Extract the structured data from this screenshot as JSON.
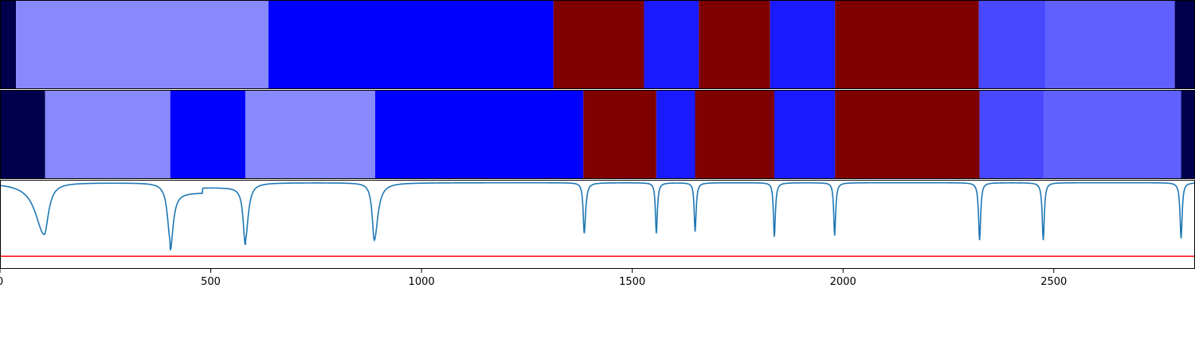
{
  "chart_data": {
    "type": "area",
    "title": "",
    "xlabel": "",
    "ylabel": "",
    "xlim": [
      0,
      2835
    ],
    "grid": false,
    "legend": "none",
    "xticks": [
      "0",
      "500",
      "1000",
      "1500",
      "2000",
      "2500"
    ],
    "xtick_values": [
      0,
      500,
      1000,
      1500,
      2000,
      2500
    ],
    "segment_tracks": [
      {
        "segments": [
          {
            "start": 0,
            "end": 38,
            "color": "#00004c"
          },
          {
            "start": 38,
            "end": 637,
            "color": "#8888ff"
          },
          {
            "start": 637,
            "end": 1313,
            "color": "#0000ff"
          },
          {
            "start": 1313,
            "end": 1528,
            "color": "#7f0000"
          },
          {
            "start": 1528,
            "end": 1658,
            "color": "#1a1aff"
          },
          {
            "start": 1658,
            "end": 1827,
            "color": "#7f0000"
          },
          {
            "start": 1827,
            "end": 1981,
            "color": "#1a1aff"
          },
          {
            "start": 1981,
            "end": 2322,
            "color": "#7f0000"
          },
          {
            "start": 2322,
            "end": 2481,
            "color": "#4848ff"
          },
          {
            "start": 2481,
            "end": 2787,
            "color": "#6060ff"
          },
          {
            "start": 2787,
            "end": 2835,
            "color": "#00004c"
          }
        ]
      },
      {
        "segments": [
          {
            "start": 0,
            "end": 107,
            "color": "#00004c"
          },
          {
            "start": 107,
            "end": 404,
            "color": "#8888ff"
          },
          {
            "start": 404,
            "end": 582,
            "color": "#0000ff"
          },
          {
            "start": 582,
            "end": 890,
            "color": "#8888ff"
          },
          {
            "start": 890,
            "end": 1384,
            "color": "#0000ff"
          },
          {
            "start": 1384,
            "end": 1557,
            "color": "#7f0000"
          },
          {
            "start": 1557,
            "end": 1649,
            "color": "#1a1aff"
          },
          {
            "start": 1649,
            "end": 1837,
            "color": "#7f0000"
          },
          {
            "start": 1837,
            "end": 1981,
            "color": "#1a1aff"
          },
          {
            "start": 1981,
            "end": 2324,
            "color": "#7f0000"
          },
          {
            "start": 2324,
            "end": 2476,
            "color": "#4848ff"
          },
          {
            "start": 2476,
            "end": 2802,
            "color": "#6060ff"
          },
          {
            "start": 2802,
            "end": 2835,
            "color": "#00004c"
          }
        ]
      }
    ],
    "signal": {
      "color": "#1f77b4",
      "ylim": [
        -1.5,
        0.05
      ],
      "dips": [
        {
          "x": 105,
          "depth": 0.9,
          "width_left": 25,
          "width_right": 12
        },
        {
          "x": 404,
          "depth": 1.0,
          "width_left": 8,
          "width_right": 8
        },
        {
          "x": 582,
          "depth": 1.0,
          "width_left": 6,
          "width_right": 8
        },
        {
          "x": 888,
          "depth": 1.0,
          "width_left": 6,
          "width_right": 10
        },
        {
          "x": 1386,
          "depth": 0.88,
          "width_left": 3,
          "width_right": 4
        },
        {
          "x": 1557,
          "depth": 0.88,
          "width_left": 2.5,
          "width_right": 3
        },
        {
          "x": 1649,
          "depth": 0.85,
          "width_left": 2.5,
          "width_right": 3
        },
        {
          "x": 1837,
          "depth": 0.94,
          "width_left": 2.5,
          "width_right": 3
        },
        {
          "x": 1980,
          "depth": 0.92,
          "width_left": 2.5,
          "width_right": 3
        },
        {
          "x": 2324,
          "depth": 1.0,
          "width_left": 3,
          "width_right": 3
        },
        {
          "x": 2475,
          "depth": 1.0,
          "width_left": 3,
          "width_right": 3
        },
        {
          "x": 2802,
          "depth": 0.97,
          "width_left": 3,
          "width_right": 3
        }
      ],
      "plateaus": [
        {
          "start": 404,
          "end": 480,
          "level": -0.17
        },
        {
          "start": 480,
          "end": 582,
          "level": -0.08
        }
      ]
    },
    "threshold": {
      "y": -1.28,
      "color": "#ff0000"
    }
  }
}
